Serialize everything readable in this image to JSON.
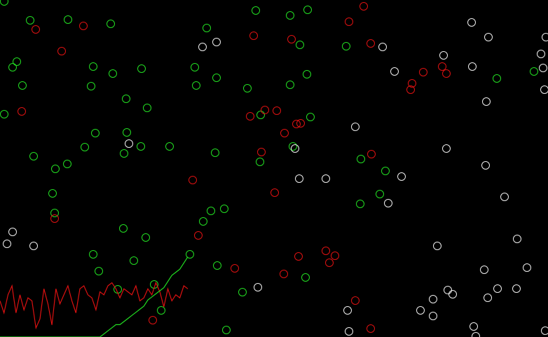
{
  "simulation": {
    "colors": {
      "background": "#000000",
      "green_team": "#22dd22",
      "red_team": "#dd1111",
      "white_neutral": "#eeeeee"
    },
    "population_history": {
      "green_series_color": "#22dd22",
      "red_series_color": "#dd1111",
      "green": [
        0,
        0,
        0,
        0,
        0,
        0,
        0,
        0,
        0,
        0,
        0,
        0,
        0,
        0,
        0,
        0,
        0,
        0,
        0,
        0,
        0,
        0,
        0,
        0,
        0,
        0,
        1,
        2,
        3,
        4,
        4,
        5,
        6,
        7,
        8,
        9,
        10,
        12,
        13,
        14,
        15,
        16,
        18,
        20,
        21,
        22,
        24,
        26
      ],
      "red": [
        12,
        8,
        14,
        17,
        8,
        14,
        9,
        13,
        12,
        3,
        6,
        16,
        11,
        4,
        16,
        11,
        14,
        17,
        12,
        8,
        16,
        17,
        14,
        13,
        9,
        15,
        14,
        17,
        18,
        16,
        13,
        16,
        15,
        14,
        17,
        12,
        13,
        16,
        14,
        18,
        15,
        10,
        16,
        12,
        14,
        13,
        17,
        16
      ]
    }
  }
}
